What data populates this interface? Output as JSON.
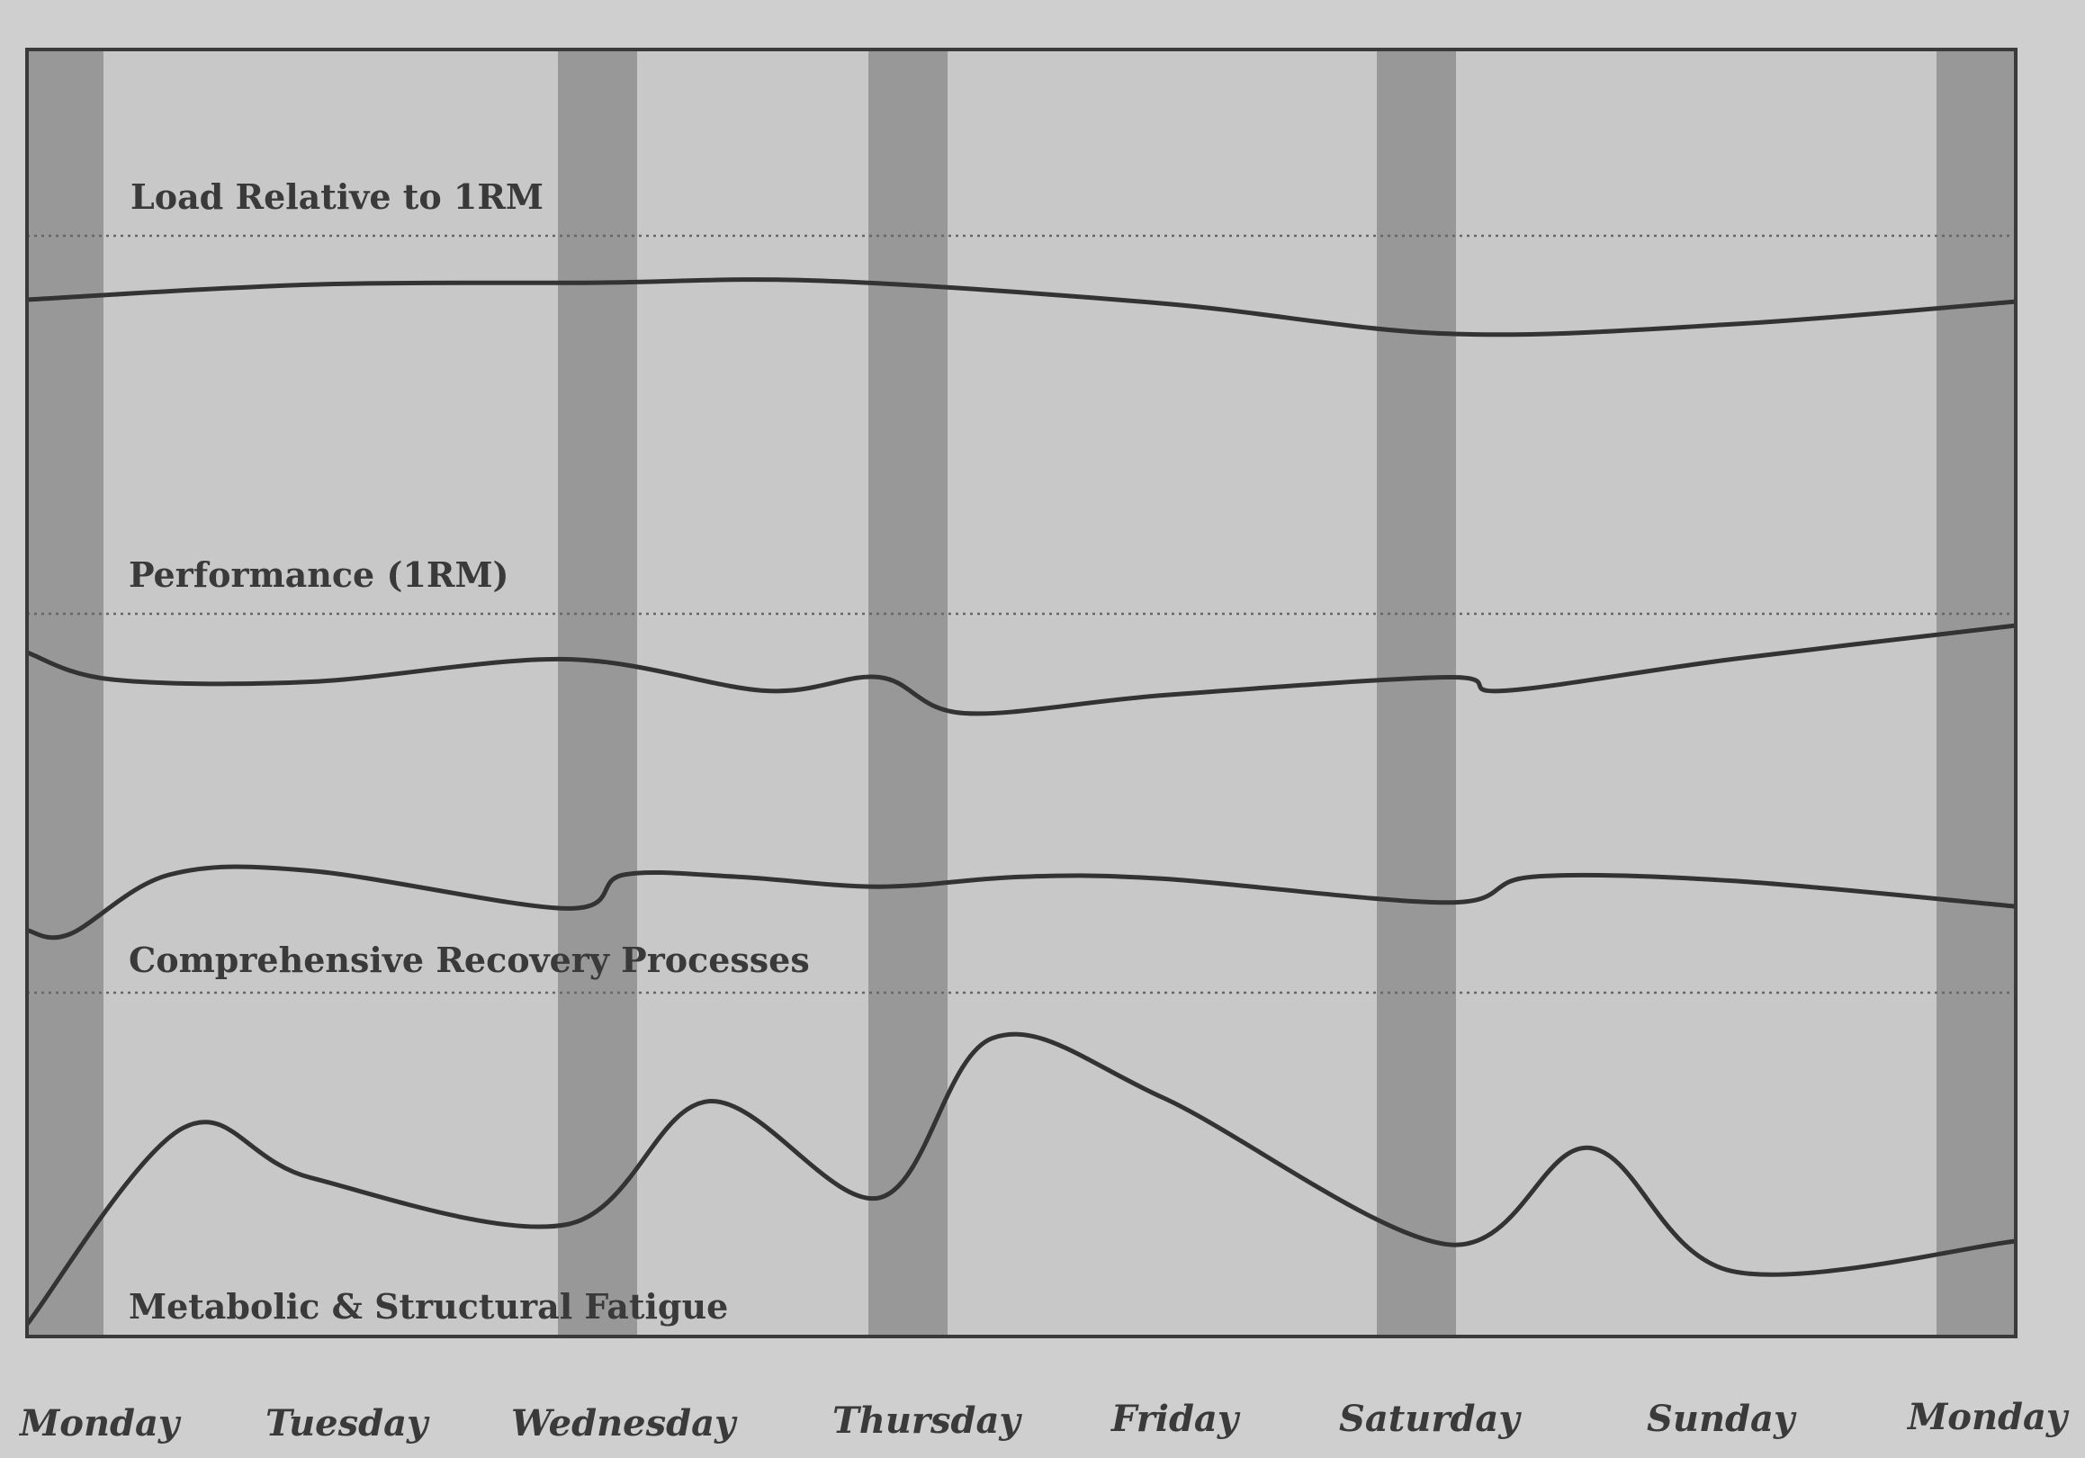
{
  "chart_data": {
    "type": "line",
    "title": "",
    "xlabel": "",
    "ylabel": "",
    "x_categories": [
      "Monday",
      "Tuesday",
      "Wednesday",
      "Thursday",
      "Friday",
      "Saturday",
      "Sunday",
      "Monday"
    ],
    "training_days": [
      "Monday",
      "Wednesday",
      "Thursday",
      "Saturday",
      "Monday"
    ],
    "series": [
      {
        "name": "Load Relative to 1RM",
        "x": [
          0,
          1.0,
          2.0,
          2.8,
          4.0,
          5.0,
          6.0,
          7.0
        ],
        "values": [
          0.7,
          0.78,
          0.79,
          0.8,
          0.68,
          0.52,
          0.57,
          0.69
        ]
      },
      {
        "name": "Performance (1RM)",
        "x": [
          0,
          0.3,
          1.0,
          1.9,
          2.6,
          3.0,
          3.3,
          4.0,
          5.0,
          5.2,
          6.0,
          7.0
        ],
        "values": [
          0.58,
          0.46,
          0.45,
          0.55,
          0.41,
          0.47,
          0.31,
          0.39,
          0.47,
          0.41,
          0.55,
          0.7
        ]
      },
      {
        "name": "Comprehensive Recovery Processes",
        "x": [
          0,
          0.15,
          0.5,
          1.0,
          1.9,
          2.1,
          2.5,
          3.0,
          3.5,
          4.0,
          5.0,
          5.3,
          6.0,
          7.0
        ],
        "values": [
          0.62,
          0.6,
          0.9,
          0.92,
          0.73,
          0.9,
          0.89,
          0.84,
          0.89,
          0.88,
          0.76,
          0.89,
          0.87,
          0.74
        ]
      },
      {
        "name": "Metabolic & Structural Fatigue",
        "x": [
          0,
          0.55,
          1.0,
          1.9,
          2.4,
          3.0,
          3.4,
          4.0,
          5.0,
          5.5,
          6.0,
          7.0
        ],
        "values": [
          0.05,
          0.64,
          0.49,
          0.35,
          0.72,
          0.43,
          0.91,
          0.73,
          0.29,
          0.58,
          0.21,
          0.3
        ]
      }
    ]
  },
  "labels": {
    "load": "Load Relative to 1RM",
    "performance": "Performance (1RM)",
    "recovery": "Comprehensive Recovery Processes",
    "fatigue": "Metabolic & Structural Fatigue"
  },
  "x_labels": [
    "Monday",
    "Tuesday",
    "Wednesday",
    "Thursday",
    "Friday",
    "Saturday",
    "Sunday",
    "Monday"
  ],
  "colors": {
    "background": "#cfcfcf",
    "panel": "#c8c8c8",
    "training_band": "#8f8f8f",
    "line": "#333333",
    "dotted_gridline": "#666666",
    "text": "#3a3a3a"
  }
}
